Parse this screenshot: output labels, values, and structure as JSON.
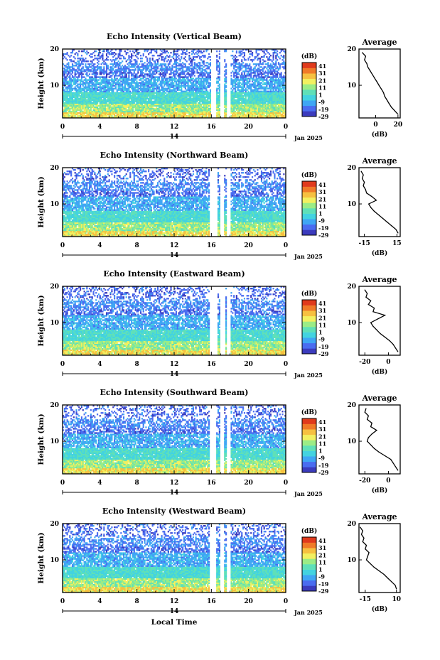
{
  "figure": {
    "x_axis_label": "Local Time",
    "date_label": "Jan 2025",
    "day_label": "14",
    "colorbar_unit": "(dB)",
    "colorbar_ticks": [
      41,
      31,
      21,
      11,
      1,
      -9,
      -19,
      -29
    ],
    "colorbar_range": [
      -29,
      46
    ],
    "colors": [
      "#3b3bbd",
      "#4a6cf0",
      "#3fa6f4",
      "#43d3e0",
      "#5fe0b8",
      "#9bec86",
      "#f2f060",
      "#f6c040",
      "#f07a28",
      "#e03a1c"
    ]
  },
  "chart_data": [
    {
      "type": "heatmap",
      "title": "Echo Intensity (Vertical Beam)",
      "ylabel": "Height (km)",
      "x_ticks": [
        "0",
        "4",
        "8",
        "12",
        "16",
        "20",
        "0"
      ],
      "xlim": [
        0,
        24
      ],
      "y_ticks": [
        "20",
        "10"
      ],
      "ylim": [
        1,
        20
      ],
      "gaps_hours": [
        [
          15.9,
          16.5
        ],
        [
          16.9,
          17.3
        ],
        [
          17.6,
          18.0
        ]
      ],
      "average_profile": {
        "title": "Average",
        "xlabel": "(dB)",
        "x_ticks": [
          "0",
          "20"
        ],
        "xlim": [
          -15,
          22
        ],
        "heights_km": [
          2,
          3,
          4,
          5,
          6,
          7,
          8,
          9,
          10,
          11,
          12,
          13,
          14,
          15,
          16,
          17,
          18,
          19
        ],
        "values_db": [
          20,
          17,
          14,
          12,
          10,
          8,
          7,
          5,
          3,
          1,
          -1,
          -3,
          -5,
          -7,
          -8,
          -10,
          -9,
          -12
        ]
      }
    },
    {
      "type": "heatmap",
      "title": "Echo Intensity (Northward Beam)",
      "ylabel": "Height (km)",
      "x_ticks": [
        "0",
        "4",
        "8",
        "12",
        "16",
        "20",
        "0"
      ],
      "xlim": [
        0,
        24
      ],
      "y_ticks": [
        "20",
        "10"
      ],
      "ylim": [
        1,
        20
      ],
      "gaps_hours": [
        [
          15.8,
          16.6
        ],
        [
          16.9,
          17.3
        ],
        [
          17.6,
          18.0
        ]
      ],
      "average_profile": {
        "title": "Average",
        "xlabel": "(dB)",
        "x_ticks": [
          "-15",
          "15"
        ],
        "xlim": [
          -20,
          18
        ],
        "heights_km": [
          2,
          3,
          4,
          5,
          6,
          7,
          8,
          9,
          10,
          11,
          12,
          13,
          14,
          15,
          16,
          17,
          18,
          19
        ],
        "values_db": [
          16,
          14,
          10,
          6,
          2,
          -2,
          -6,
          -9,
          -11,
          -4,
          -8,
          -13,
          -14,
          -16,
          -15,
          -17,
          -16,
          -18
        ]
      }
    },
    {
      "type": "heatmap",
      "title": "Echo Intensity (Eastward Beam)",
      "ylabel": "Height (km)",
      "x_ticks": [
        "0",
        "4",
        "8",
        "12",
        "16",
        "20",
        "0"
      ],
      "xlim": [
        0,
        24
      ],
      "y_ticks": [
        "20",
        "10"
      ],
      "ylim": [
        1,
        20
      ],
      "gaps_hours": [
        [
          15.8,
          16.6
        ],
        [
          17.0,
          17.5
        ],
        [
          17.7,
          18.1
        ]
      ],
      "average_profile": {
        "title": "Average",
        "xlabel": "(dB)",
        "x_ticks": [
          "-20",
          "0"
        ],
        "xlim": [
          -25,
          10
        ],
        "heights_km": [
          2,
          3,
          4,
          5,
          6,
          7,
          8,
          9,
          10,
          11,
          12,
          13,
          14,
          15,
          16,
          17,
          18,
          19
        ],
        "values_db": [
          8,
          6,
          4,
          1,
          -3,
          -7,
          -10,
          -13,
          -15,
          -9,
          -3,
          -13,
          -12,
          -17,
          -15,
          -19,
          -18,
          -20
        ]
      }
    },
    {
      "type": "heatmap",
      "title": "Echo Intensity (Southward Beam)",
      "ylabel": "Height (km)",
      "x_ticks": [
        "0",
        "4",
        "8",
        "12",
        "16",
        "20",
        "0"
      ],
      "xlim": [
        0,
        24
      ],
      "y_ticks": [
        "20",
        "10"
      ],
      "ylim": [
        1,
        20
      ],
      "gaps_hours": [
        [
          15.8,
          16.5
        ],
        [
          17.0,
          17.4
        ],
        [
          17.7,
          18.1
        ]
      ],
      "average_profile": {
        "title": "Average",
        "xlabel": "(dB)",
        "x_ticks": [
          "-20",
          "0"
        ],
        "xlim": [
          -25,
          10
        ],
        "heights_km": [
          2,
          3,
          4,
          5,
          6,
          7,
          8,
          9,
          10,
          11,
          12,
          13,
          14,
          15,
          16,
          17,
          18,
          19
        ],
        "values_db": [
          8,
          6,
          4,
          2,
          -3,
          -8,
          -12,
          -15,
          -18,
          -17,
          -14,
          -10,
          -15,
          -14,
          -18,
          -17,
          -20,
          -19
        ]
      }
    },
    {
      "type": "heatmap",
      "title": "Echo Intensity (Westward Beam)",
      "ylabel": "Height (km)",
      "x_ticks": [
        "0",
        "4",
        "8",
        "12",
        "16",
        "20",
        "0"
      ],
      "xlim": [
        0,
        24
      ],
      "y_ticks": [
        "20",
        "10"
      ],
      "ylim": [
        1,
        20
      ],
      "gaps_hours": [
        [
          15.8,
          16.5
        ],
        [
          17.0,
          17.4
        ],
        [
          17.7,
          18.1
        ]
      ],
      "average_profile": {
        "title": "Average",
        "xlabel": "(dB)",
        "x_ticks": [
          "-15",
          "10"
        ],
        "xlim": [
          -20,
          13
        ],
        "heights_km": [
          2,
          3,
          4,
          5,
          6,
          7,
          8,
          9,
          10,
          11,
          12,
          13,
          14,
          15,
          16,
          17,
          18,
          19
        ],
        "values_db": [
          10,
          9,
          6,
          3,
          0,
          -4,
          -8,
          -11,
          -14,
          -13,
          -12,
          -15,
          -14,
          -17,
          -16,
          -18,
          -17,
          -19
        ]
      }
    }
  ]
}
